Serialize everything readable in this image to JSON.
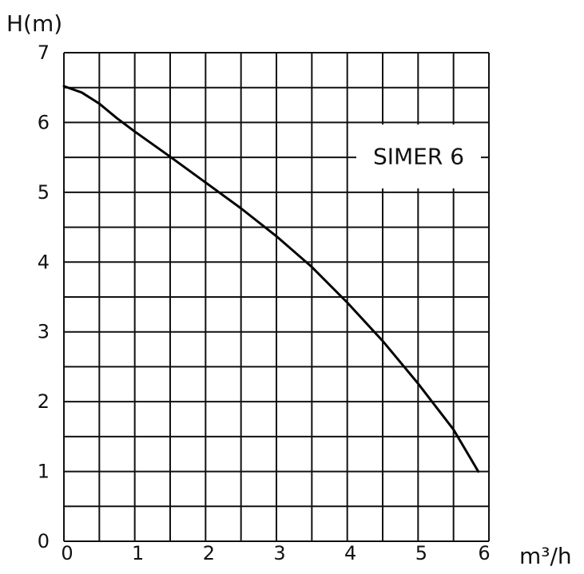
{
  "chart_data": {
    "type": "line",
    "y_axis_label": "H(m)",
    "x_axis_label": "m³/h",
    "x_ticks": [
      "0",
      "1",
      "2",
      "3",
      "4",
      "5",
      "6"
    ],
    "y_ticks": [
      "0",
      "1",
      "2",
      "3",
      "4",
      "5",
      "6",
      "7"
    ],
    "xlim": [
      0,
      6
    ],
    "ylim": [
      0,
      7
    ],
    "grid": true,
    "grid_step_x": 0.5,
    "grid_step_y": 0.5,
    "series": [
      {
        "name": "SIMER 6",
        "color": "#000000",
        "points": [
          {
            "x": 0,
            "y": 6.52
          },
          {
            "x": 0.25,
            "y": 6.43
          },
          {
            "x": 0.5,
            "y": 6.27
          },
          {
            "x": 0.75,
            "y": 6.06
          },
          {
            "x": 1.0,
            "y": 5.87
          },
          {
            "x": 1.5,
            "y": 5.51
          },
          {
            "x": 2.0,
            "y": 5.14
          },
          {
            "x": 2.5,
            "y": 4.77
          },
          {
            "x": 3.0,
            "y": 4.37
          },
          {
            "x": 3.5,
            "y": 3.93
          },
          {
            "x": 4.0,
            "y": 3.42
          },
          {
            "x": 4.5,
            "y": 2.87
          },
          {
            "x": 5.0,
            "y": 2.26
          },
          {
            "x": 5.5,
            "y": 1.6
          },
          {
            "x": 5.85,
            "y": 1.0
          }
        ]
      }
    ]
  }
}
